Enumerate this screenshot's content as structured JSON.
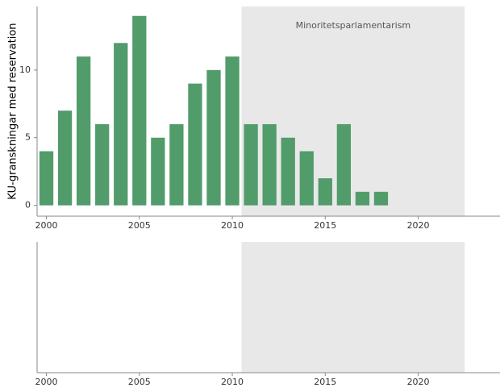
{
  "chart_data": [
    {
      "type": "bar",
      "ylabel": "KU-granskningar med reservation",
      "x": [
        2000,
        2001,
        2002,
        2003,
        2004,
        2005,
        2006,
        2007,
        2008,
        2009,
        2010,
        2011,
        2012,
        2013,
        2014,
        2015,
        2016,
        2017,
        2018
      ],
      "values": [
        4,
        7,
        11,
        6,
        12,
        14,
        5,
        6,
        9,
        10,
        11,
        6,
        6,
        5,
        4,
        2,
        6,
        1,
        1
      ],
      "color": "#519c6a",
      "xlim": [
        1999.5,
        2024.4
      ],
      "xticks": [
        2000,
        2005,
        2010,
        2015,
        2020
      ],
      "ylim": [
        -0.8,
        14.7
      ],
      "yticks": [
        0,
        5,
        10
      ],
      "shaded_region": {
        "xlim": [
          2010.5,
          2022.5
        ],
        "color": "#e8e8e8",
        "label": "Minoritetsparlamentarism"
      }
    },
    {
      "type": "bar",
      "x": [],
      "values": [],
      "color": "#519c6a",
      "xlim": [
        1999.5,
        2024.4
      ],
      "xticks": [
        2000,
        2005,
        2010,
        2015,
        2020
      ],
      "shaded_region": {
        "xlim": [
          2010.5,
          2022.5
        ],
        "color": "#e8e8e8"
      }
    }
  ]
}
